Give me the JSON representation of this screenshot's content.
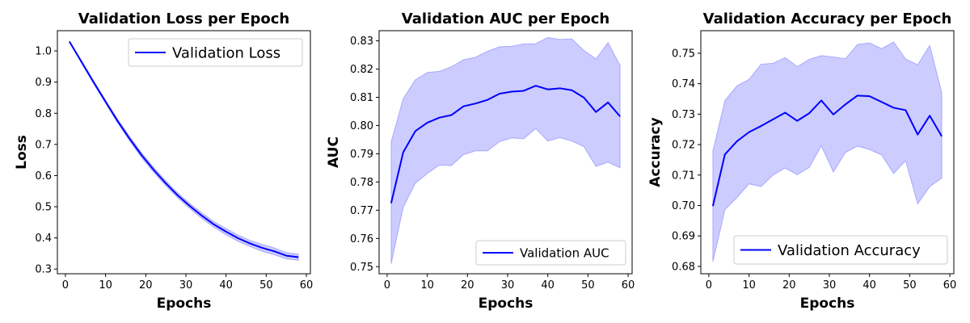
{
  "chart_data": [
    {
      "type": "line",
      "title": "Validation Loss per Epoch",
      "xlabel": "Epochs",
      "ylabel": "Loss",
      "xlim": [
        -2,
        61
      ],
      "ylim": [
        0.285,
        1.065
      ],
      "xticks": [
        0,
        10,
        20,
        30,
        40,
        50,
        60
      ],
      "yticks": [
        0.3,
        0.4,
        0.5,
        0.6,
        0.7,
        0.8,
        0.9,
        1.0
      ],
      "ytick_decimals": 1,
      "legend_position": "upper right",
      "grid": false,
      "color": "#0000ff",
      "x": [
        1,
        4,
        7,
        10,
        13,
        16,
        19,
        22,
        25,
        28,
        31,
        34,
        37,
        40,
        43,
        46,
        49,
        52,
        55,
        58
      ],
      "series": [
        {
          "name": "Validation Loss",
          "values": [
            1.03,
            0.965,
            0.9,
            0.837,
            0.775,
            0.718,
            0.665,
            0.618,
            0.575,
            0.536,
            0.502,
            0.471,
            0.443,
            0.42,
            0.399,
            0.382,
            0.368,
            0.357,
            0.343,
            0.338
          ],
          "lower": [
            1.028,
            0.961,
            0.895,
            0.832,
            0.769,
            0.711,
            0.657,
            0.61,
            0.567,
            0.528,
            0.494,
            0.462,
            0.434,
            0.41,
            0.389,
            0.372,
            0.357,
            0.346,
            0.333,
            0.328
          ],
          "upper": [
            1.032,
            0.969,
            0.905,
            0.842,
            0.781,
            0.725,
            0.673,
            0.626,
            0.583,
            0.544,
            0.51,
            0.48,
            0.452,
            0.43,
            0.409,
            0.392,
            0.379,
            0.368,
            0.353,
            0.348
          ]
        }
      ]
    },
    {
      "type": "line",
      "title": "Validation AUC per Epoch",
      "xlabel": "Epochs",
      "ylabel": "AUC",
      "xlim": [
        -2,
        61
      ],
      "ylim": [
        0.7475,
        0.8336
      ],
      "xticks": [
        0,
        10,
        20,
        30,
        40,
        50,
        60
      ],
      "yticks": [
        0.75,
        0.76,
        0.77,
        0.78,
        0.79,
        0.8,
        0.81,
        0.82,
        0.83
      ],
      "ytick_decimals": 2,
      "legend_position": "lower right",
      "grid": false,
      "color": "#0000ff",
      "x": [
        1,
        4,
        7,
        10,
        13,
        16,
        19,
        22,
        25,
        28,
        31,
        34,
        37,
        40,
        43,
        46,
        49,
        52,
        55,
        58
      ],
      "series": [
        {
          "name": "Validation AUC",
          "values": [
            0.7725,
            0.7905,
            0.798,
            0.801,
            0.8028,
            0.8037,
            0.8068,
            0.8078,
            0.8091,
            0.8113,
            0.812,
            0.8123,
            0.8141,
            0.8128,
            0.8132,
            0.8125,
            0.8099,
            0.8048,
            0.8082,
            0.8032
          ],
          "lower": [
            0.751,
            0.771,
            0.7795,
            0.783,
            0.786,
            0.7858,
            0.7897,
            0.791,
            0.791,
            0.7943,
            0.7956,
            0.7953,
            0.7989,
            0.7945,
            0.7957,
            0.7945,
            0.7925,
            0.7855,
            0.787,
            0.785
          ],
          "upper": [
            0.7942,
            0.8095,
            0.8162,
            0.8188,
            0.8192,
            0.8208,
            0.8233,
            0.8242,
            0.8263,
            0.8279,
            0.8281,
            0.8289,
            0.829,
            0.8312,
            0.8305,
            0.8307,
            0.8266,
            0.8236,
            0.8294,
            0.8213
          ]
        }
      ]
    },
    {
      "type": "line",
      "title": "Validation Accuracy per Epoch",
      "xlabel": "Epochs",
      "ylabel": "Accuracy",
      "xlim": [
        -2,
        61
      ],
      "ylim": [
        0.6776,
        0.7574
      ],
      "xticks": [
        0,
        10,
        20,
        30,
        40,
        50,
        60
      ],
      "yticks": [
        0.68,
        0.69,
        0.7,
        0.71,
        0.72,
        0.73,
        0.74,
        0.75
      ],
      "ytick_decimals": 2,
      "legend_position": "lower right",
      "grid": false,
      "color": "#0000ff",
      "x": [
        1,
        4,
        7,
        10,
        13,
        16,
        19,
        22,
        25,
        28,
        31,
        34,
        37,
        40,
        43,
        46,
        49,
        52,
        55,
        58
      ],
      "series": [
        {
          "name": "Validation Accuracy",
          "values": [
            0.6998,
            0.7168,
            0.7211,
            0.7241,
            0.7261,
            0.7283,
            0.7305,
            0.7278,
            0.7303,
            0.7345,
            0.7299,
            0.7332,
            0.7361,
            0.7359,
            0.734,
            0.7321,
            0.7313,
            0.7233,
            0.7295,
            0.7227
          ],
          "lower": [
            0.6815,
            0.6986,
            0.7026,
            0.7071,
            0.7062,
            0.71,
            0.7123,
            0.7101,
            0.7125,
            0.7196,
            0.711,
            0.7174,
            0.7195,
            0.7184,
            0.7166,
            0.7105,
            0.7147,
            0.7005,
            0.7062,
            0.709
          ],
          "upper": [
            0.7179,
            0.7345,
            0.7393,
            0.7414,
            0.7464,
            0.7467,
            0.7486,
            0.7456,
            0.748,
            0.7492,
            0.7488,
            0.7482,
            0.7529,
            0.7534,
            0.7515,
            0.7537,
            0.7481,
            0.7462,
            0.7526,
            0.737
          ]
        }
      ]
    }
  ]
}
